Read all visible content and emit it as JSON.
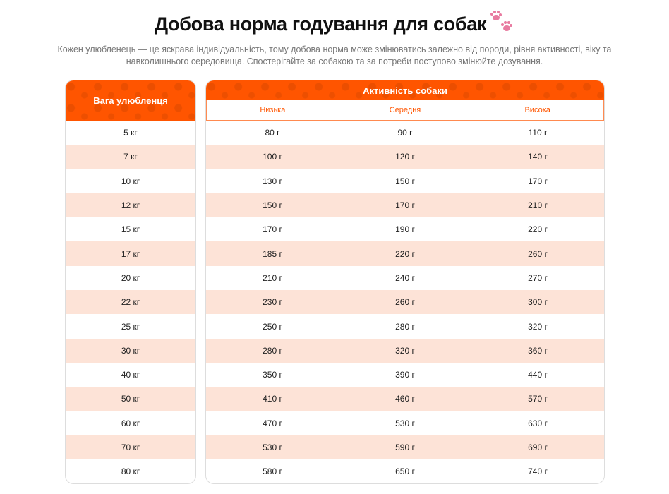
{
  "title": "Добова норма годування для собак",
  "title_icon": "paw-prints-icon",
  "subtitle": "Кожен улюбленець — це яскрава індивідуальність, тому добова норма може змінюватись залежно від породи, рівня активності, віку та навколишнього середовища. Спостерігайте за собакою та за потреби поступово змінюйте дозування.",
  "accent": "#ff5500",
  "weight_header": "Вага улюбленця",
  "activity_header": "Активність собаки",
  "activity_levels": [
    "Низька",
    "Середня",
    "Висока"
  ],
  "rows": [
    {
      "w": "5 кг",
      "v": [
        "80 г",
        "90 г",
        "110 г"
      ]
    },
    {
      "w": "7 кг",
      "v": [
        "100 г",
        "120 г",
        "140 г"
      ]
    },
    {
      "w": "10 кг",
      "v": [
        "130 г",
        "150 г",
        "170 г"
      ]
    },
    {
      "w": "12 кг",
      "v": [
        "150 г",
        "170 г",
        "210 г"
      ]
    },
    {
      "w": "15 кг",
      "v": [
        "170 г",
        "190 г",
        "220 г"
      ]
    },
    {
      "w": "17 кг",
      "v": [
        "185 г",
        "220 г",
        "260 г"
      ]
    },
    {
      "w": "20 кг",
      "v": [
        "210 г",
        "240 г",
        "270 г"
      ]
    },
    {
      "w": "22 кг",
      "v": [
        "230 г",
        "260 г",
        "300 г"
      ]
    },
    {
      "w": "25 кг",
      "v": [
        "250 г",
        "280 г",
        "320 г"
      ]
    },
    {
      "w": "30 кг",
      "v": [
        "280 г",
        "320 г",
        "360 г"
      ]
    },
    {
      "w": "40 кг",
      "v": [
        "350 г",
        "390 г",
        "440 г"
      ]
    },
    {
      "w": "50 кг",
      "v": [
        "410 г",
        "460 г",
        "570 г"
      ]
    },
    {
      "w": "60 кг",
      "v": [
        "470 г",
        "530 г",
        "630 г"
      ]
    },
    {
      "w": "70 кг",
      "v": [
        "530 г",
        "590 г",
        "690 г"
      ]
    },
    {
      "w": "80 кг",
      "v": [
        "580 г",
        "650 г",
        "740 г"
      ]
    }
  ]
}
